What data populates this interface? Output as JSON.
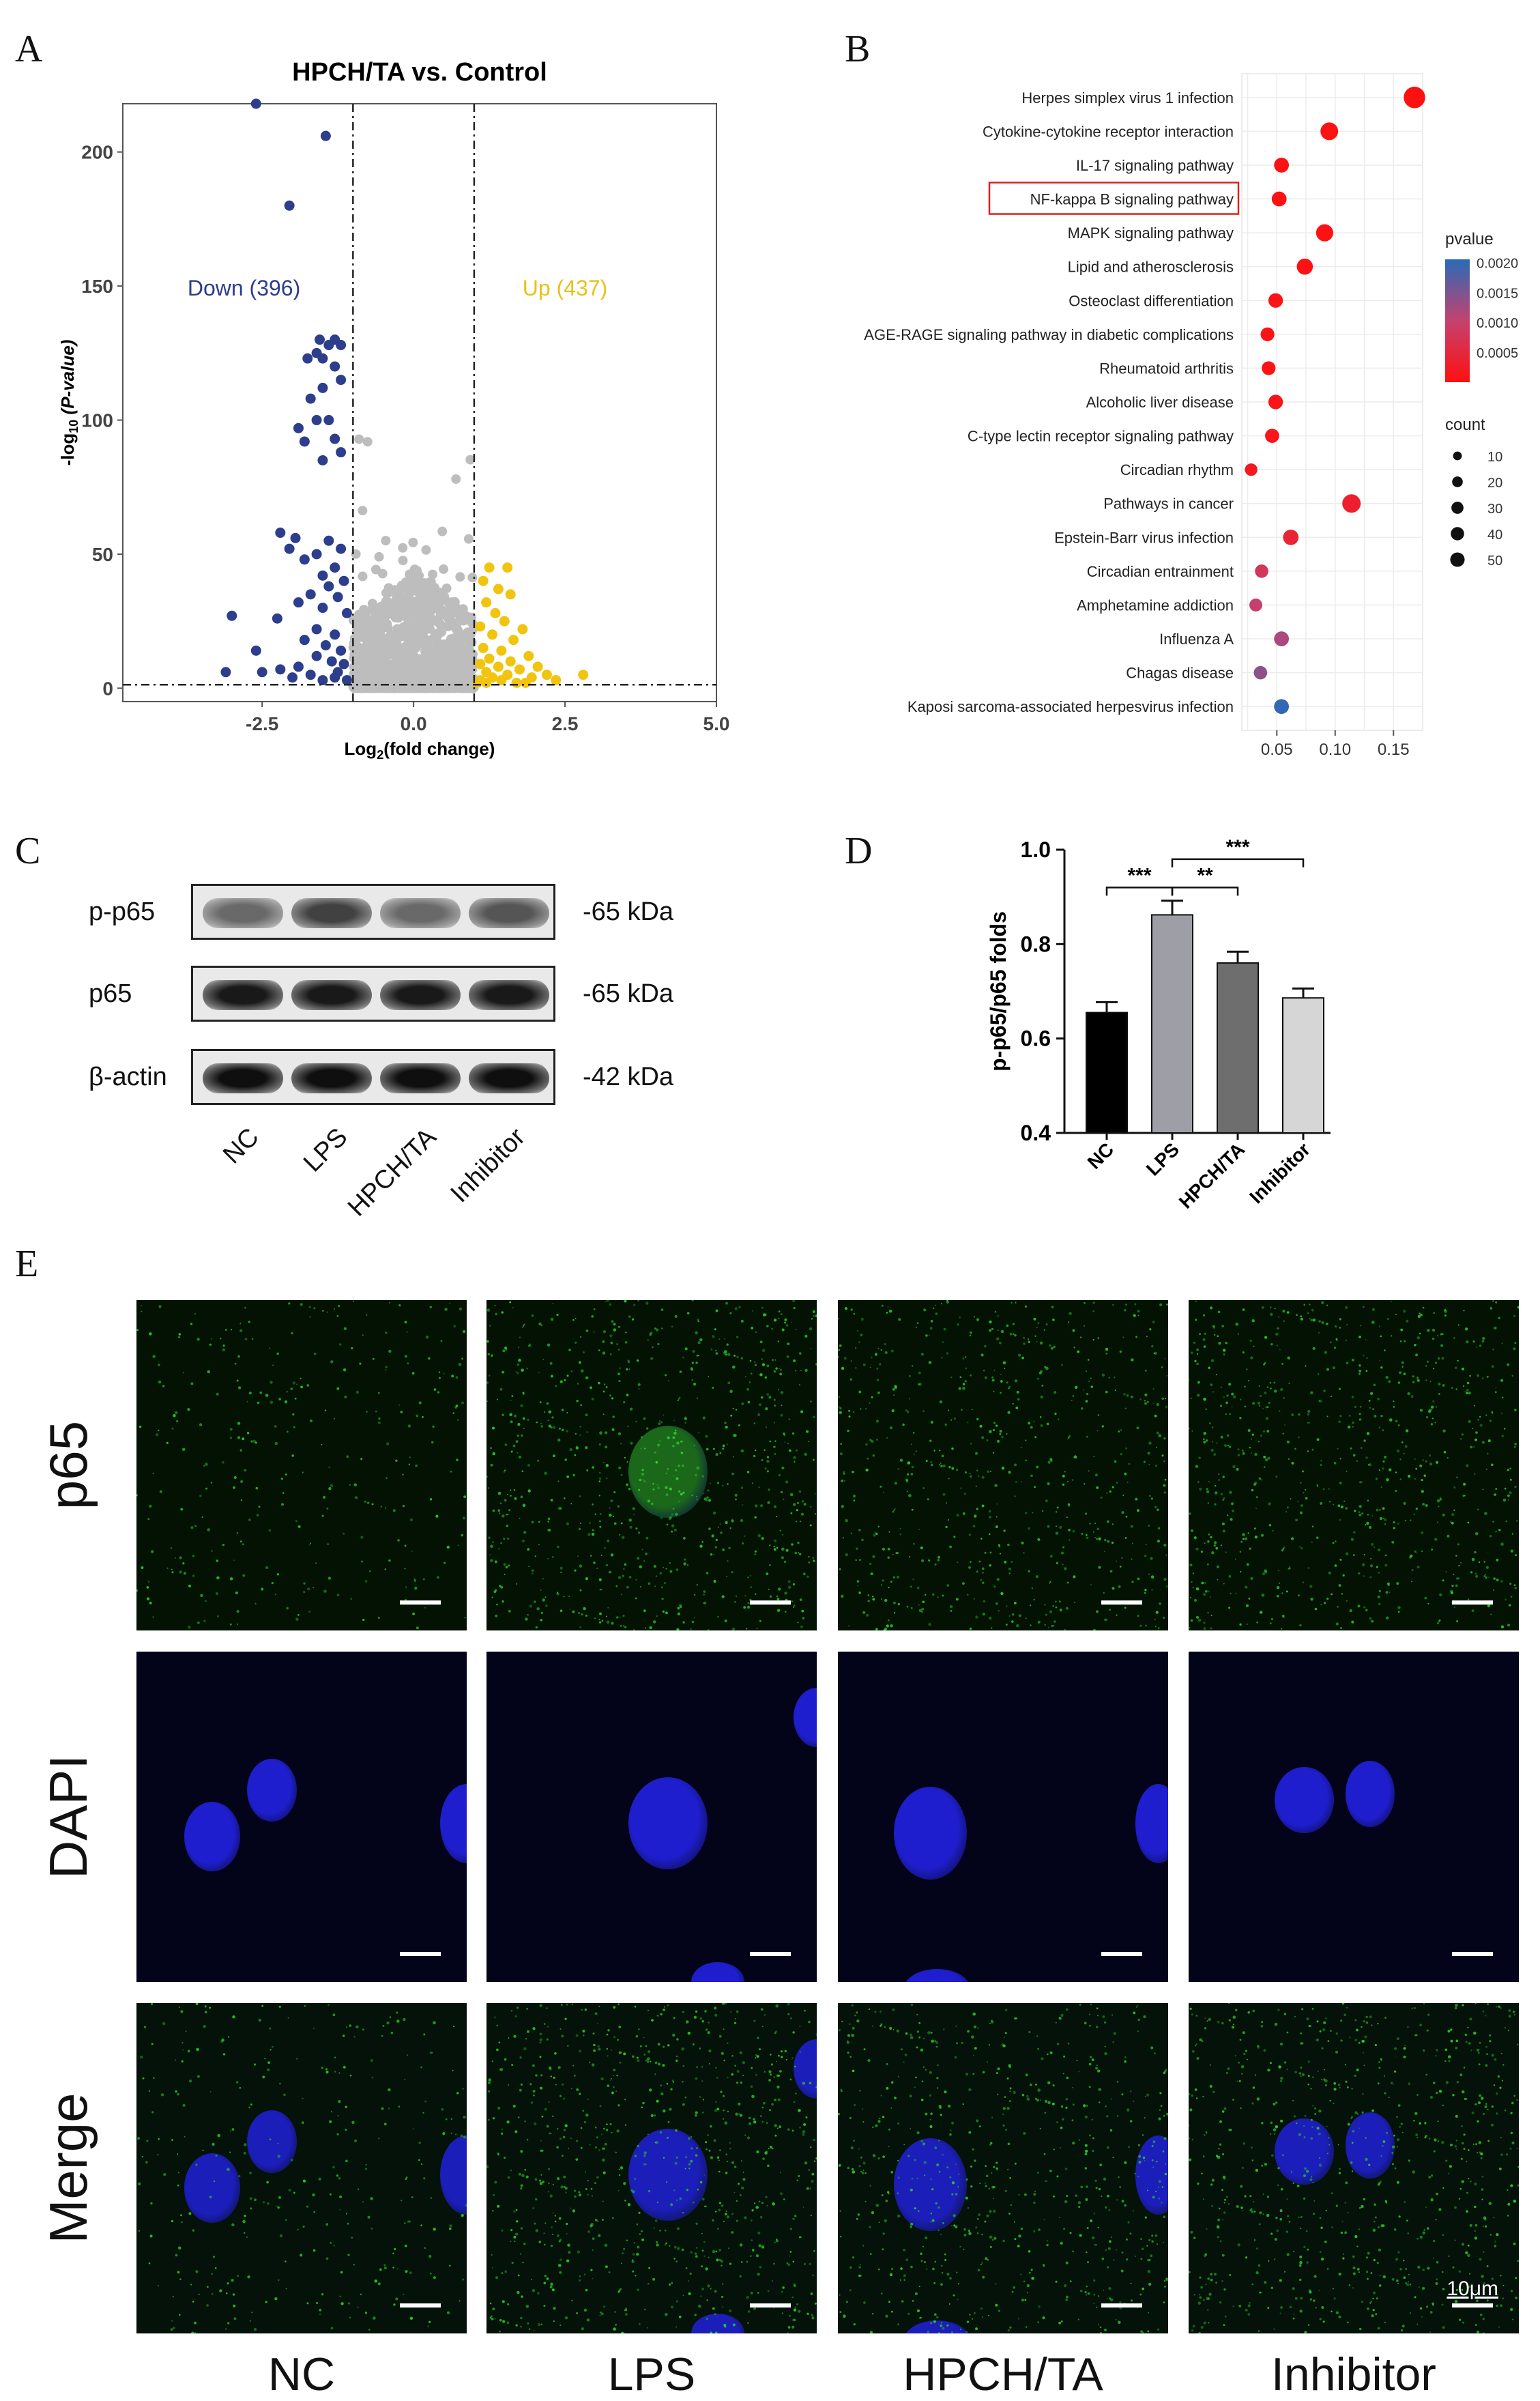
{
  "panels": {
    "A": "A",
    "B": "B",
    "C": "C",
    "D": "D",
    "E": "E"
  },
  "chart_data": [
    {
      "type": "scatter",
      "panel": "A",
      "title": "HPCH/TA vs. Control",
      "xlabel_main": "Log",
      "xlabel_sub": "2",
      "xlabel_tail": "(fold change)",
      "ylabel_main": "-log",
      "ylabel_sub": "10",
      "ylabel_tail": " (P-value)",
      "xlim": [
        -4.8,
        5.0
      ],
      "ylim": [
        -5,
        218
      ],
      "xticks": [
        "-2.5",
        "0.0",
        "2.5",
        "5.0"
      ],
      "xtick_values": [
        -2.5,
        0.0,
        2.5,
        5.0
      ],
      "yticks": [
        "0",
        "50",
        "100",
        "150",
        "200"
      ],
      "ytick_values": [
        0,
        50,
        100,
        150,
        200
      ],
      "vlines": [
        -1,
        1
      ],
      "hline": 1.3,
      "annotations": [
        {
          "text": "Down (396)",
          "x": -2.8,
          "y": 150,
          "color": "#2c3e8c"
        },
        {
          "text": "Up (437)",
          "x": 2.5,
          "y": 150,
          "color": "#e8c21a"
        }
      ],
      "colors": {
        "down": "#2c3e8c",
        "up": "#f1c40f",
        "ns": "#bdbdbd"
      },
      "series": [
        {
          "group": "down",
          "points": [
            [
              -2.6,
              218
            ],
            [
              -1.45,
              206
            ],
            [
              -2.05,
              180
            ],
            [
              -1.3,
              130
            ],
            [
              -1.55,
              130
            ],
            [
              -1.4,
              128
            ],
            [
              -1.2,
              128
            ],
            [
              -1.6,
              125
            ],
            [
              -1.75,
              123
            ],
            [
              -1.5,
              123
            ],
            [
              -1.3,
              120
            ],
            [
              -1.2,
              115
            ],
            [
              -1.5,
              112
            ],
            [
              -1.7,
              108
            ],
            [
              -1.4,
              100
            ],
            [
              -1.6,
              100
            ],
            [
              -1.9,
              97
            ],
            [
              -1.3,
              93
            ],
            [
              -1.8,
              92
            ],
            [
              -1.2,
              88
            ],
            [
              -1.5,
              85
            ],
            [
              -2.2,
              58
            ],
            [
              -1.95,
              56
            ],
            [
              -1.4,
              55
            ],
            [
              -2.05,
              52
            ],
            [
              -1.2,
              52
            ],
            [
              -1.6,
              50
            ],
            [
              -1.8,
              48
            ],
            [
              -1.3,
              45
            ],
            [
              -1.5,
              42
            ],
            [
              -1.15,
              40
            ],
            [
              -1.4,
              38
            ],
            [
              -1.7,
              35
            ],
            [
              -1.25,
              34
            ],
            [
              -1.9,
              32
            ],
            [
              -1.5,
              30
            ],
            [
              -1.1,
              28
            ],
            [
              -2.25,
              26
            ],
            [
              -3.0,
              27
            ],
            [
              -1.6,
              22
            ],
            [
              -1.3,
              20
            ],
            [
              -1.8,
              18
            ],
            [
              -1.45,
              16
            ],
            [
              -1.2,
              14
            ],
            [
              -2.6,
              14
            ],
            [
              -1.6,
              12
            ],
            [
              -1.35,
              10
            ],
            [
              -1.15,
              9
            ],
            [
              -1.9,
              8
            ],
            [
              -2.2,
              7
            ],
            [
              -2.5,
              6
            ],
            [
              -3.1,
              6
            ],
            [
              -1.7,
              5
            ],
            [
              -1.3,
              4
            ],
            [
              -1.1,
              3
            ],
            [
              -1.5,
              3
            ],
            [
              -2.0,
              4
            ],
            [
              -1.25,
              6
            ]
          ]
        },
        {
          "group": "up",
          "points": [
            [
              1.25,
              45
            ],
            [
              1.55,
              45
            ],
            [
              1.15,
              40
            ],
            [
              1.4,
              37
            ],
            [
              1.6,
              35
            ],
            [
              1.2,
              32
            ],
            [
              1.35,
              28
            ],
            [
              1.5,
              25
            ],
            [
              1.1,
              23
            ],
            [
              1.8,
              22
            ],
            [
              1.3,
              20
            ],
            [
              1.65,
              18
            ],
            [
              1.15,
              15
            ],
            [
              1.45,
              14
            ],
            [
              1.9,
              12
            ],
            [
              1.25,
              11
            ],
            [
              1.6,
              10
            ],
            [
              1.1,
              9
            ],
            [
              2.05,
              8
            ],
            [
              1.4,
              8
            ],
            [
              1.75,
              7
            ],
            [
              1.2,
              6
            ],
            [
              1.55,
              5
            ],
            [
              2.2,
              5
            ],
            [
              1.3,
              4
            ],
            [
              1.95,
              4
            ],
            [
              2.8,
              5
            ],
            [
              1.1,
              3
            ],
            [
              1.45,
              3
            ],
            [
              1.7,
              2
            ],
            [
              2.35,
              3
            ],
            [
              1.2,
              2
            ],
            [
              1.85,
              2
            ],
            [
              1.05,
              2
            ]
          ]
        }
      ]
    },
    {
      "type": "scatter",
      "panel": "B",
      "terms": [
        "Herpes simplex virus 1 infection",
        "Cytokine-cytokine receptor interaction",
        "IL-17 signaling pathway",
        "NF-kappa B signaling pathway",
        "MAPK signaling pathway",
        "Lipid and atherosclerosis",
        "Osteoclast differentiation",
        "AGE-RAGE signaling pathway in diabetic complications",
        "Rheumatoid arthritis",
        "Alcoholic liver disease",
        "C-type lectin receptor signaling pathway",
        "Circadian rhythm",
        "Pathways in cancer",
        "Epstein-Barr virus infection",
        "Circadian entrainment",
        "Amphetamine addiction",
        "Influenza A",
        "Chagas disease",
        "Kaposi sarcoma-associated herpesvirus infection"
      ],
      "highlighted_term": "NF-kappa B signaling pathway",
      "gene_ratio": [
        0.168,
        0.095,
        0.054,
        0.052,
        0.091,
        0.074,
        0.049,
        0.042,
        0.043,
        0.049,
        0.046,
        0.028,
        0.114,
        0.062,
        0.037,
        0.032,
        0.054,
        0.036,
        0.054
      ],
      "pvalue": [
        1e-05,
        2e-05,
        3e-05,
        3e-05,
        4e-05,
        5e-05,
        6e-05,
        6e-05,
        7e-05,
        8e-05,
        0.0001,
        0.00015,
        0.0003,
        0.0004,
        0.0008,
        0.001,
        0.0012,
        0.0014,
        0.002
      ],
      "count": [
        40,
        22,
        12,
        12,
        20,
        16,
        11,
        9,
        9,
        11,
        10,
        6,
        25,
        14,
        8,
        7,
        12,
        8,
        12
      ],
      "xlim": [
        0.02,
        0.175
      ],
      "xticks": [
        "0.05",
        "0.10",
        "0.15"
      ],
      "xtick_values": [
        0.05,
        0.1,
        0.15
      ],
      "legend_pvalue": {
        "title": "pvalue",
        "ticks": [
          "0.0020",
          "0.0015",
          "0.0010",
          "0.0005"
        ],
        "tick_values": [
          0.002,
          0.0015,
          0.001,
          0.0005
        ],
        "range": [
          0.0,
          0.00205
        ]
      },
      "legend_count": {
        "title": "count",
        "values": [
          10,
          20,
          30,
          40,
          50
        ],
        "labels": [
          "10",
          "20",
          "30",
          "40",
          "50"
        ]
      },
      "colors": {
        "low": "#ff1010",
        "high": "#2a6ab8"
      }
    },
    {
      "type": "bar",
      "panel": "D",
      "categories": [
        "NC",
        "LPS",
        "HPCH/TA",
        "Inhibitor"
      ],
      "values": [
        0.655,
        0.862,
        0.76,
        0.686
      ],
      "errors": [
        0.022,
        0.03,
        0.024,
        0.02
      ],
      "colors": [
        "#000000",
        "#9e9ea6",
        "#6e6e6e",
        "#d6d6d6"
      ],
      "ylabel": "p-p65/p65 folds",
      "ylim": [
        0.4,
        1.0
      ],
      "yticks": [
        "0.4",
        "0.6",
        "0.8",
        "1.0"
      ],
      "ytick_values": [
        0.4,
        0.6,
        0.8,
        1.0
      ],
      "significance": [
        {
          "from": 0,
          "to": 1,
          "label": "***",
          "y": 0.92
        },
        {
          "from": 1,
          "to": 2,
          "label": "**",
          "y": 0.92
        },
        {
          "from": 1,
          "to": 3,
          "label": "***",
          "y": 0.98
        }
      ]
    }
  ],
  "western_blot": {
    "rows": [
      {
        "label": "p-p65",
        "kda": "-65 kDa",
        "intensity": [
          0.55,
          0.75,
          0.55,
          0.65
        ]
      },
      {
        "label": "p65",
        "kda": "-65 kDa",
        "intensity": [
          0.95,
          0.95,
          0.95,
          0.95
        ]
      },
      {
        "label": "β-actin",
        "kda": "-42 kDa",
        "intensity": [
          1.0,
          1.0,
          1.0,
          1.0
        ]
      }
    ],
    "lanes": [
      "NC",
      "LPS",
      "HPCH/TA",
      "Inhibitor"
    ]
  },
  "microscopy": {
    "rows": [
      "p65",
      "DAPI",
      "Merge"
    ],
    "columns": [
      "NC",
      "LPS",
      "HPCH/TA",
      "Inhibitor"
    ],
    "scale_label": "10μm",
    "colors": {
      "p65": "#2bd62b",
      "dapi": "#2020d8"
    }
  }
}
